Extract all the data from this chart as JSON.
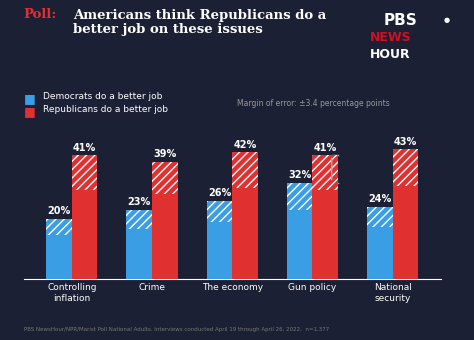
{
  "title_poll": "Poll: ",
  "title_main": "Americans think Republicans do a\nbetter job on these issues",
  "categories": [
    "Controlling\ninflation",
    "Crime",
    "The economy",
    "Gun policy",
    "National\nsecurity"
  ],
  "dem_values": [
    20,
    23,
    26,
    32,
    24
  ],
  "rep_values": [
    41,
    39,
    42,
    41,
    43
  ],
  "dem_color": "#3a9ee4",
  "rep_color": "#e03030",
  "bg_color": "#1c2035",
  "text_color": "#ffffff",
  "legend_dem": "Democrats do a better job",
  "legend_rep": "Republicans do a better job",
  "margin_text": "Margin of error: ±3.4 percentage points",
  "footer_text": "PBS NewsHour/NPR/Marist Poll National Adults. Interviews conducted April 19 through April 26, 2022,  n=1,377",
  "bar_width": 0.32,
  "ylim": [
    0,
    52
  ],
  "pbs_red": "#cc1122"
}
